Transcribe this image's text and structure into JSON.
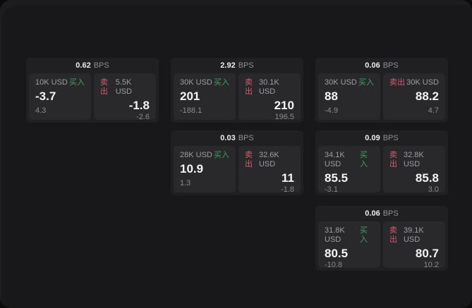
{
  "labels": {
    "buy": "买入",
    "sell": "卖出",
    "unit": "BPS"
  },
  "colors": {
    "buy": "#3fa05f",
    "sell": "#d65a6f",
    "background": "#1d1d1f",
    "window": "#18181a",
    "card": "#202023",
    "panel": "#29292c"
  },
  "cards": [
    {
      "grid": {
        "row": 1,
        "col": 1
      },
      "bps": "0.62",
      "buy": {
        "amount": "10K USD",
        "main": "-3.7",
        "sub": "4.3"
      },
      "sell": {
        "amount": "5.5K USD",
        "main": "-1.8",
        "sub": "-2.6"
      }
    },
    {
      "grid": {
        "row": 1,
        "col": 2
      },
      "bps": "2.92",
      "buy": {
        "amount": "30K USD",
        "main": "201",
        "sub": "-188.1"
      },
      "sell": {
        "amount": "30.1K USD",
        "main": "210",
        "sub": "196.5"
      }
    },
    {
      "grid": {
        "row": 1,
        "col": 3
      },
      "bps": "0.06",
      "buy": {
        "amount": "30K USD",
        "main": "88",
        "sub": "-4.9"
      },
      "sell": {
        "amount": "30K USD",
        "main": "88.2",
        "sub": "4.7"
      }
    },
    {
      "grid": {
        "row": 2,
        "col": 2
      },
      "bps": "0.03",
      "buy": {
        "amount": "28K USD",
        "main": "10.9",
        "sub": "1.3"
      },
      "sell": {
        "amount": "32.6K USD",
        "main": "11",
        "sub": "-1.8"
      }
    },
    {
      "grid": {
        "row": 2,
        "col": 3
      },
      "bps": "0.09",
      "buy": {
        "amount": "34.1K USD",
        "main": "85.5",
        "sub": "-3.1"
      },
      "sell": {
        "amount": "32.8K USD",
        "main": "85.8",
        "sub": "3.0"
      }
    },
    {
      "grid": {
        "row": 3,
        "col": 3
      },
      "bps": "0.06",
      "buy": {
        "amount": "31.8K USD",
        "main": "80.5",
        "sub": "-10.8"
      },
      "sell": {
        "amount": "39.1K USD",
        "main": "80.7",
        "sub": "10.2"
      }
    }
  ]
}
